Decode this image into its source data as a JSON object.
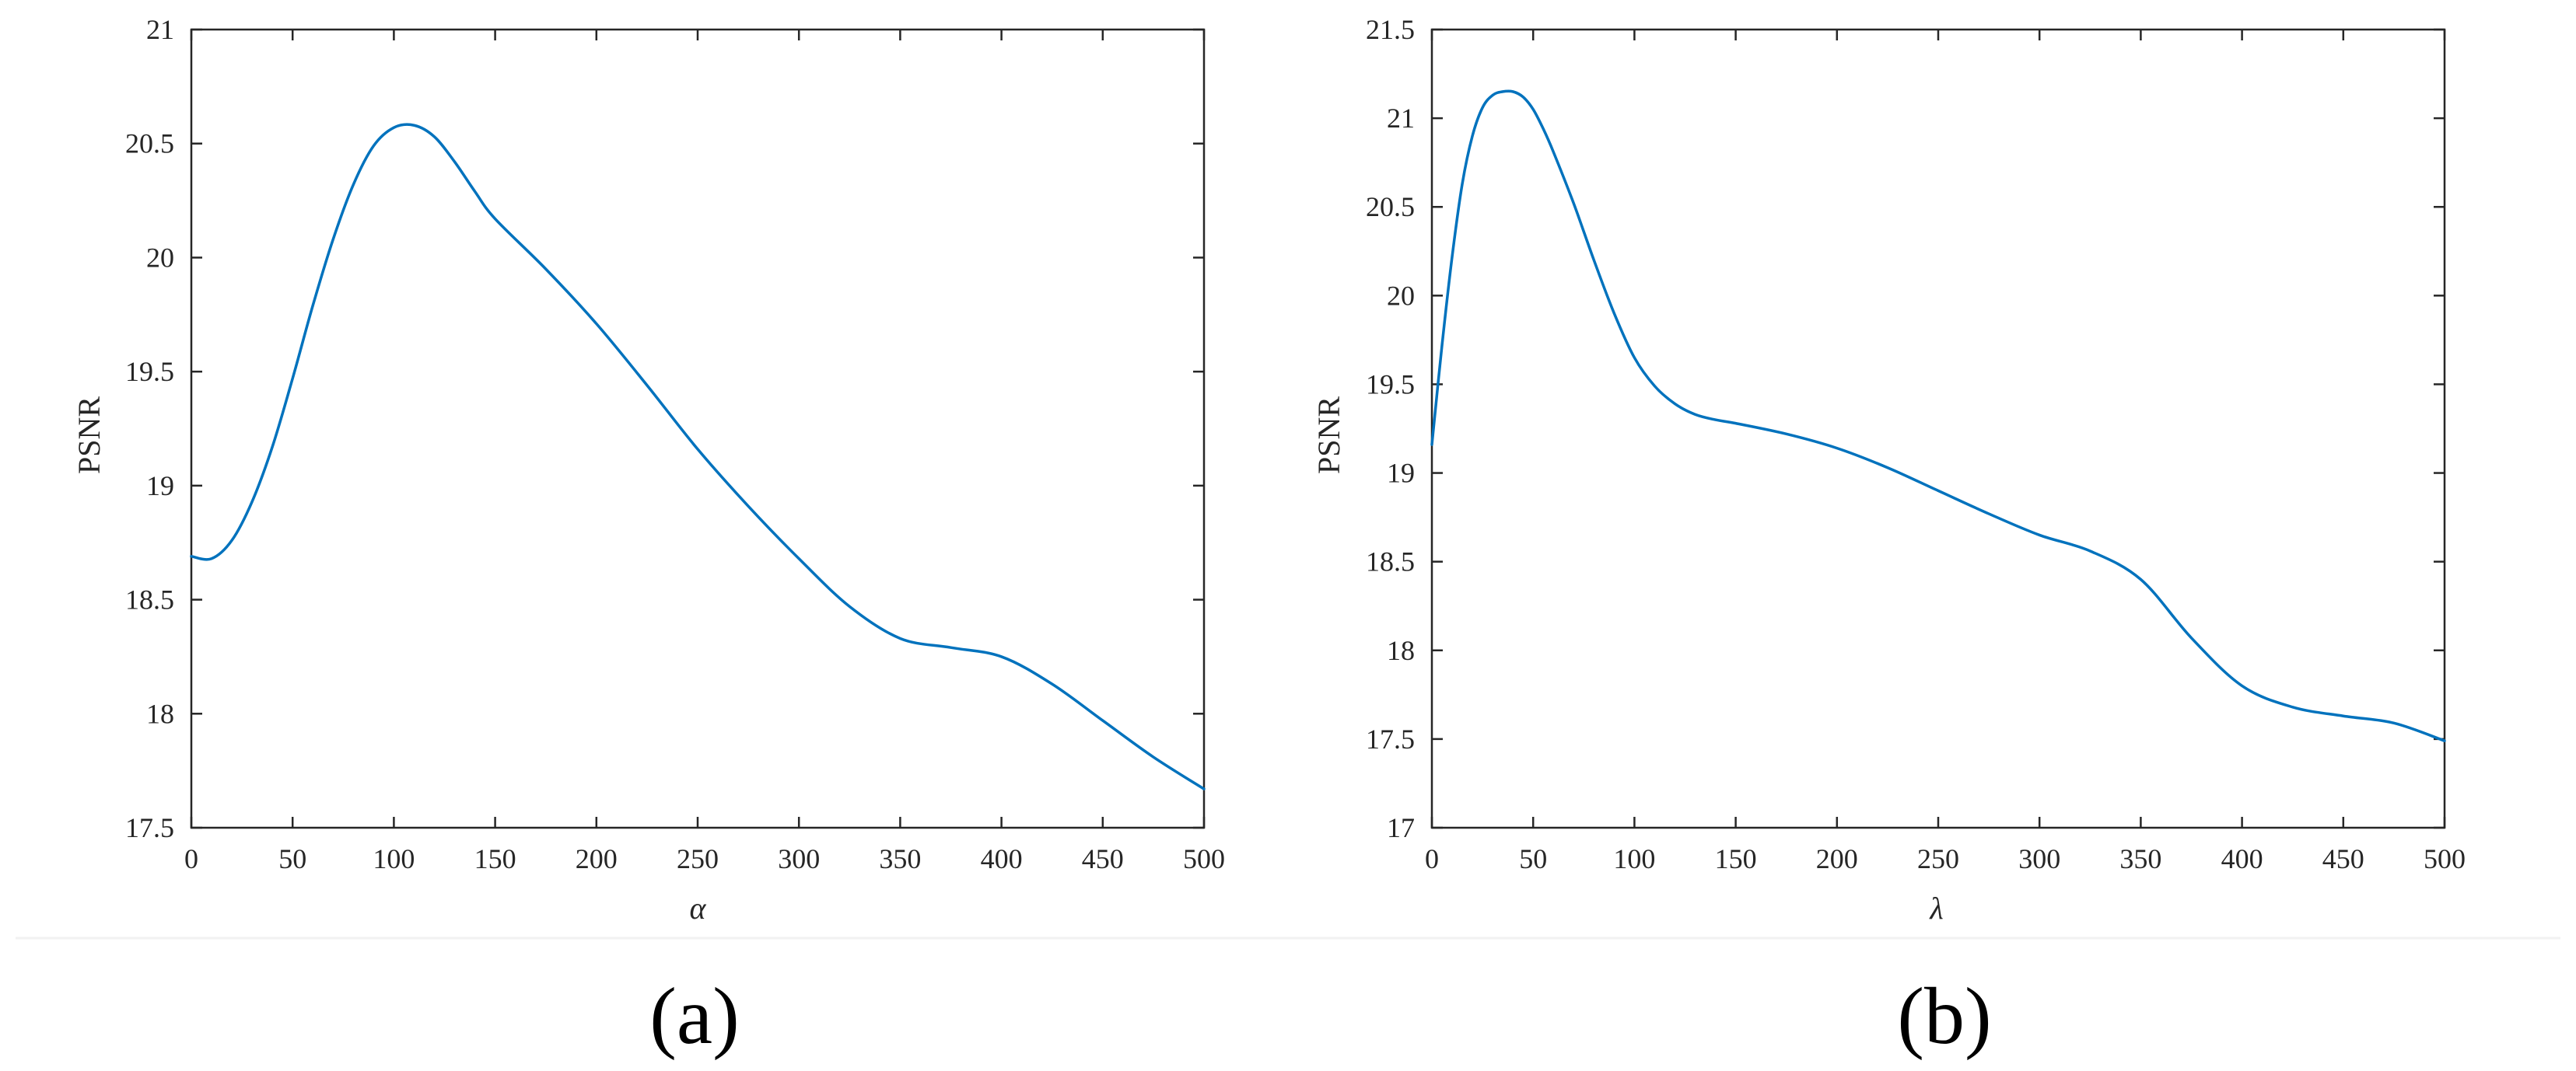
{
  "colors": {
    "series": "#0072BD",
    "axes": "#262626"
  },
  "chart_data": [
    {
      "type": "line",
      "caption": "(a)",
      "xlabel": "α",
      "ylabel": "PSNR",
      "xlim": [
        0,
        500
      ],
      "ylim": [
        17.5,
        21
      ],
      "xticks": [
        0,
        50,
        100,
        150,
        200,
        250,
        300,
        350,
        400,
        450,
        500
      ],
      "yticks": [
        17.5,
        18,
        18.5,
        19,
        19.5,
        20,
        20.5,
        21
      ],
      "grid": false,
      "series": [
        {
          "x": [
            0,
            10,
            20,
            30,
            40,
            50,
            60,
            70,
            80,
            90,
            100,
            110,
            120,
            130,
            140,
            150,
            175,
            200,
            225,
            250,
            275,
            300,
            325,
            350,
            375,
            400,
            425,
            450,
            475,
            500
          ],
          "values": [
            18.69,
            18.68,
            18.76,
            18.93,
            19.17,
            19.47,
            19.79,
            20.08,
            20.32,
            20.49,
            20.57,
            20.58,
            20.53,
            20.42,
            20.29,
            20.17,
            19.95,
            19.71,
            19.44,
            19.16,
            18.91,
            18.68,
            18.47,
            18.33,
            18.29,
            18.25,
            18.13,
            17.97,
            17.81,
            17.67
          ]
        }
      ]
    },
    {
      "type": "line",
      "caption": "(b)",
      "xlabel": "λ",
      "ylabel": "PSNR",
      "xlim": [
        0,
        500
      ],
      "ylim": [
        17,
        21.5
      ],
      "xticks": [
        0,
        50,
        100,
        150,
        200,
        250,
        300,
        350,
        400,
        450,
        500
      ],
      "yticks": [
        17,
        17.5,
        18,
        18.5,
        19,
        19.5,
        20,
        20.5,
        21,
        21.5
      ],
      "grid": false,
      "series": [
        {
          "x": [
            0,
            5,
            10,
            15,
            20,
            25,
            30,
            35,
            40,
            45,
            50,
            55,
            60,
            70,
            80,
            90,
            100,
            110,
            120,
            130,
            140,
            150,
            175,
            200,
            225,
            250,
            275,
            300,
            325,
            350,
            375,
            400,
            425,
            450,
            475,
            500
          ],
          "values": [
            19.16,
            19.72,
            20.22,
            20.63,
            20.9,
            21.06,
            21.13,
            21.15,
            21.15,
            21.12,
            21.05,
            20.94,
            20.81,
            20.52,
            20.2,
            19.9,
            19.65,
            19.49,
            19.39,
            19.33,
            19.3,
            19.28,
            19.22,
            19.14,
            19.03,
            18.9,
            18.77,
            18.65,
            18.56,
            18.4,
            18.07,
            17.8,
            17.68,
            17.63,
            17.59,
            17.49
          ]
        }
      ]
    }
  ]
}
